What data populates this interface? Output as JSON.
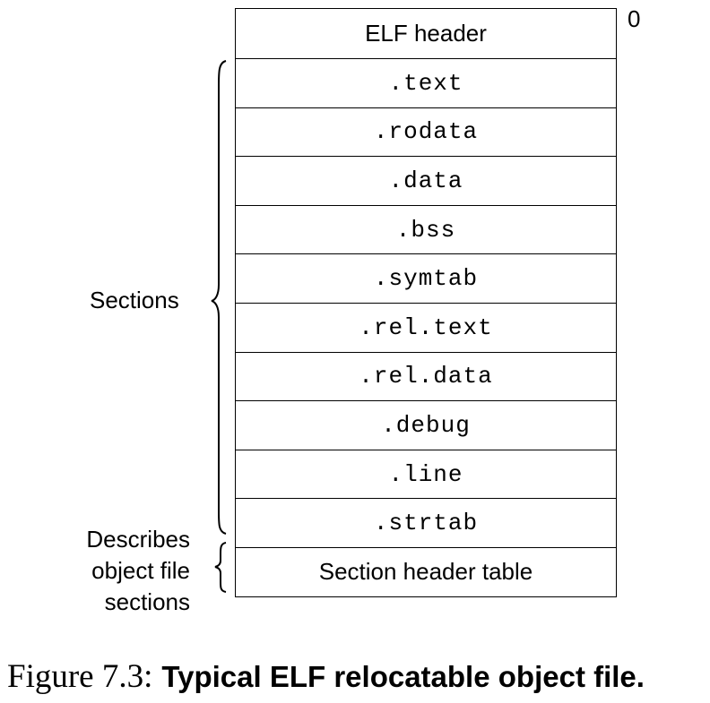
{
  "header": {
    "elf_header": "ELF header",
    "offset_label": "0"
  },
  "sections": [
    ".text",
    ".rodata",
    ".data",
    ".bss",
    ".symtab",
    ".rel.text",
    ".rel.data",
    ".debug",
    ".line",
    ".strtab"
  ],
  "section_header_table": "Section header table",
  "labels": {
    "sections": "Sections",
    "describes_lines": [
      "Describes",
      "object file",
      "sections"
    ]
  },
  "caption": {
    "figure": "Figure 7.3:",
    "title": "Typical ELF relocatable object file."
  }
}
